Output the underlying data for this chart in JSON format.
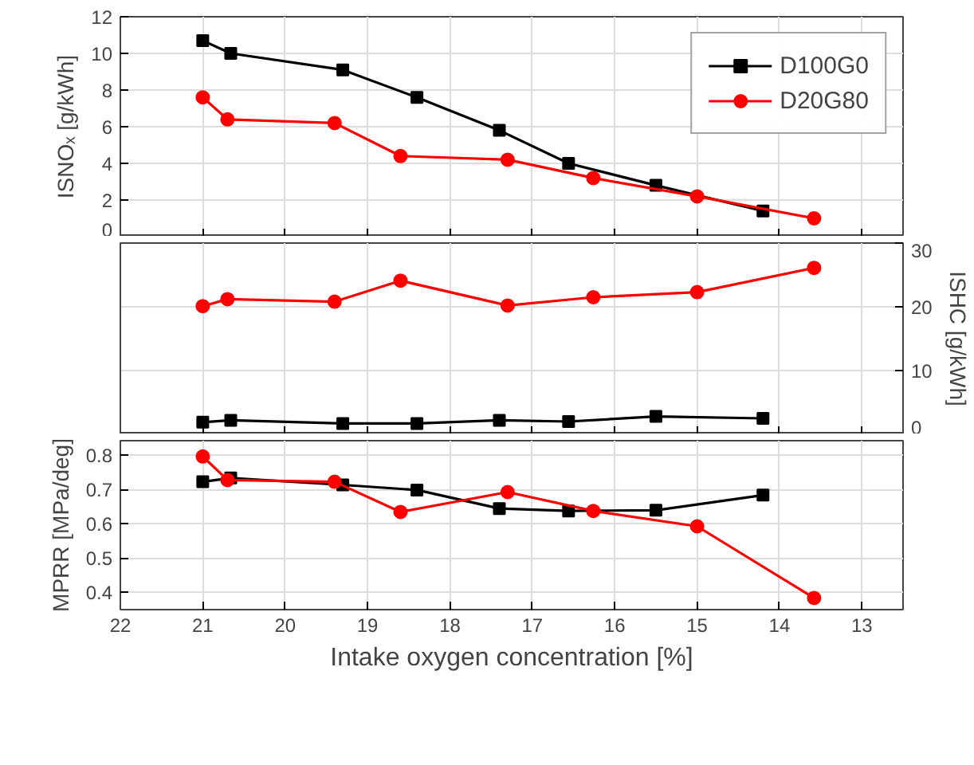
{
  "chart_data": [
    {
      "type": "line",
      "ylabel": "ISNOₓ [g/kWh]",
      "xlim": [
        22,
        12.5
      ],
      "xticks": [
        22,
        21,
        20,
        19,
        18,
        17,
        16,
        15,
        14,
        13
      ],
      "ylim": [
        0,
        12
      ],
      "yticks": [
        0,
        2,
        4,
        6,
        8,
        10,
        12
      ],
      "grid": true,
      "legend": "top right",
      "tick_labels": "y",
      "line_style": "solid",
      "series": [
        {
          "name": "D100G0",
          "color": "#000000",
          "marker": "square",
          "x": [
            21,
            20.66,
            19.3,
            18.4,
            17.4,
            16.56,
            15.5,
            14.2
          ],
          "values": [
            10.7,
            10.0,
            9.1,
            7.6,
            5.8,
            4.0,
            2.8,
            1.4
          ]
        },
        {
          "name": "D20G80",
          "color": "#ff0000",
          "marker": "circle",
          "x": [
            21,
            20.7,
            19.4,
            18.6,
            17.3,
            16.26,
            15.0,
            13.58
          ],
          "values": [
            7.6,
            6.4,
            6.2,
            4.4,
            4.2,
            3.2,
            2.2,
            1.0
          ]
        }
      ]
    },
    {
      "type": "line",
      "y2label": "ISHC [g/kWh]",
      "xlim": [
        22,
        12.5
      ],
      "xticks": [
        22,
        21,
        20,
        19,
        18,
        17,
        16,
        15,
        14,
        13
      ],
      "y2lim": [
        0,
        30
      ],
      "y2ticks": [
        0,
        10,
        20,
        30
      ],
      "grid": true,
      "tick_labels": "y",
      "line_style": "solid",
      "series": [
        {
          "color": "#000000",
          "marker": "square",
          "axis": "y2",
          "x": [
            21,
            20.66,
            19.3,
            18.4,
            17.4,
            16.56,
            15.5,
            14.2
          ],
          "values": [
            1.9,
            2.2,
            1.7,
            1.7,
            2.2,
            2.0,
            2.8,
            2.5
          ]
        },
        {
          "color": "#ff0000",
          "marker": "circle",
          "axis": "y2",
          "x": [
            21,
            20.7,
            19.4,
            18.6,
            17.3,
            16.26,
            15.0,
            13.58
          ],
          "values": [
            20.1,
            21.2,
            20.8,
            24.1,
            20.2,
            21.5,
            22.3,
            26.1
          ]
        }
      ]
    },
    {
      "type": "line",
      "ylabel": "MPRR [MPa/deg]",
      "xlabel": "Intake oxygen concentration [%]",
      "xlim": [
        22,
        12.5
      ],
      "xticks": [
        22,
        21,
        20,
        19,
        18,
        17,
        16,
        15,
        14,
        13
      ],
      "ylim": [
        0.35,
        0.843
      ],
      "yticks": [
        0.4,
        0.5,
        0.6,
        0.7,
        0.8
      ],
      "grid": true,
      "line_style": "solid",
      "series": [
        {
          "color": "#000000",
          "marker": "square",
          "x": [
            21,
            20.66,
            19.3,
            18.4,
            17.4,
            16.56,
            15.5,
            14.2
          ],
          "values": [
            0.723,
            0.734,
            0.714,
            0.699,
            0.645,
            0.638,
            0.64,
            0.684
          ]
        },
        {
          "color": "#ff0000",
          "marker": "circle",
          "x": [
            21,
            20.7,
            19.4,
            18.6,
            17.3,
            16.26,
            15.0,
            13.58
          ],
          "values": [
            0.797,
            0.728,
            0.723,
            0.635,
            0.693,
            0.638,
            0.593,
            0.384
          ]
        }
      ]
    }
  ]
}
